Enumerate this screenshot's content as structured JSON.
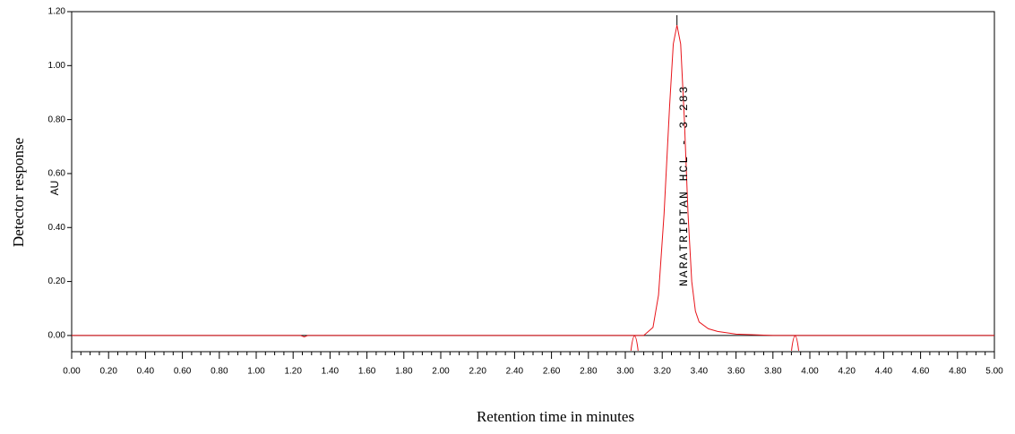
{
  "chart_data": {
    "type": "line",
    "x_label": "Retention time in minutes",
    "y_label": "Detector response",
    "y_unit": "AU",
    "annotation": "NARATRIPTAN HCL - 3.283",
    "x": [
      0,
      1.24,
      1.26,
      1.28,
      3.1,
      3.15,
      3.18,
      3.21,
      3.24,
      3.26,
      3.28,
      3.3,
      3.32,
      3.34,
      3.36,
      3.38,
      3.4,
      3.45,
      3.5,
      3.6,
      3.8,
      5.0
    ],
    "series": [
      {
        "color": "#e8141a",
        "values": [
          0,
          0,
          -0.005,
          0,
          0,
          0.03,
          0.15,
          0.45,
          0.85,
          1.08,
          1.15,
          1.08,
          0.8,
          0.45,
          0.2,
          0.09,
          0.05,
          0.025,
          0.015,
          0.005,
          0,
          0
        ]
      }
    ],
    "baseline_markers": [
      3.05,
      3.92
    ],
    "xlim": [
      0,
      5
    ],
    "ylim": [
      -0.06,
      1.2
    ],
    "xticks": [
      {
        "value": 0,
        "label": "0.00"
      },
      {
        "value": 0.2,
        "label": "0.20"
      },
      {
        "value": 0.4,
        "label": "0.40"
      },
      {
        "value": 0.6,
        "label": "0.60"
      },
      {
        "value": 0.8,
        "label": "0.80"
      },
      {
        "value": 1,
        "label": "1.00"
      },
      {
        "value": 1.2,
        "label": "1.20"
      },
      {
        "value": 1.4,
        "label": "1.40"
      },
      {
        "value": 1.6,
        "label": "1.60"
      },
      {
        "value": 1.8,
        "label": "1.80"
      },
      {
        "value": 2,
        "label": "2.00"
      },
      {
        "value": 2.2,
        "label": "2.20"
      },
      {
        "value": 2.4,
        "label": "2.40"
      },
      {
        "value": 2.6,
        "label": "2.60"
      },
      {
        "value": 2.8,
        "label": "2.80"
      },
      {
        "value": 3,
        "label": "3.00"
      },
      {
        "value": 3.2,
        "label": "3.20"
      },
      {
        "value": 3.4,
        "label": "3.40"
      },
      {
        "value": 3.6,
        "label": "3.60"
      },
      {
        "value": 3.8,
        "label": "3.80"
      },
      {
        "value": 4,
        "label": "4.00"
      },
      {
        "value": 4.2,
        "label": "4.20"
      },
      {
        "value": 4.4,
        "label": "4.40"
      },
      {
        "value": 4.6,
        "label": "4.60"
      },
      {
        "value": 4.8,
        "label": "4.80"
      },
      {
        "value": 5,
        "label": "5.00"
      }
    ],
    "yticks": [
      {
        "value": 0,
        "label": "0.00"
      },
      {
        "value": 0.2,
        "label": "0.20"
      },
      {
        "value": 0.4,
        "label": "0.40"
      },
      {
        "value": 0.6,
        "label": "0.60"
      },
      {
        "value": 0.8,
        "label": "0.80"
      },
      {
        "value": 1,
        "label": "1.00"
      },
      {
        "value": 1.2,
        "label": "1.20"
      }
    ]
  }
}
